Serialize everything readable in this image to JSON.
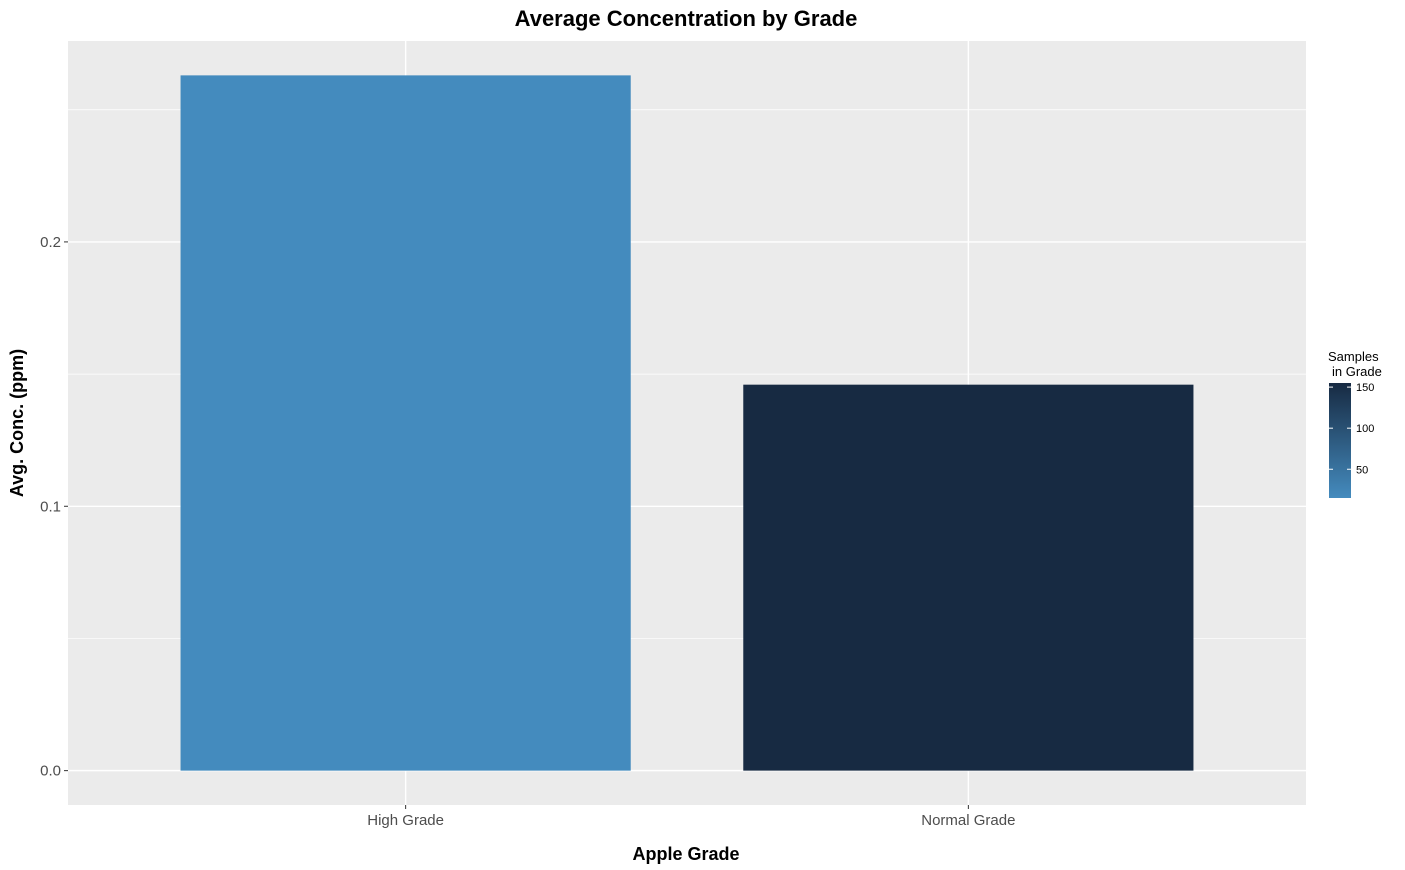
{
  "chart_data": {
    "type": "bar",
    "title": "Average Concentration by Grade",
    "xlabel": "Apple Grade",
    "ylabel": "Avg. Conc. (ppm)",
    "categories": [
      "High Grade",
      "Normal Grade"
    ],
    "values": [
      0.263,
      0.146
    ],
    "fill_values": [
      15,
      155
    ],
    "ylim": [
      -0.013,
      0.276
    ],
    "yticks": [
      0.0,
      0.1,
      0.2
    ],
    "ytick_labels": [
      "0.0",
      "0.1",
      "0.2"
    ],
    "grid": true,
    "panel_background": "#ebebeb",
    "grid_color": "#ffffff",
    "legend": {
      "position": "right",
      "title_line1": "Samples",
      "title_line2": "in Grade",
      "type": "colorbar",
      "range": [
        15,
        155
      ],
      "breaks": [
        50,
        100,
        150
      ],
      "break_labels": [
        "50",
        "100",
        "150"
      ],
      "color_low": "#448bbe",
      "color_high": "#172a42"
    }
  }
}
